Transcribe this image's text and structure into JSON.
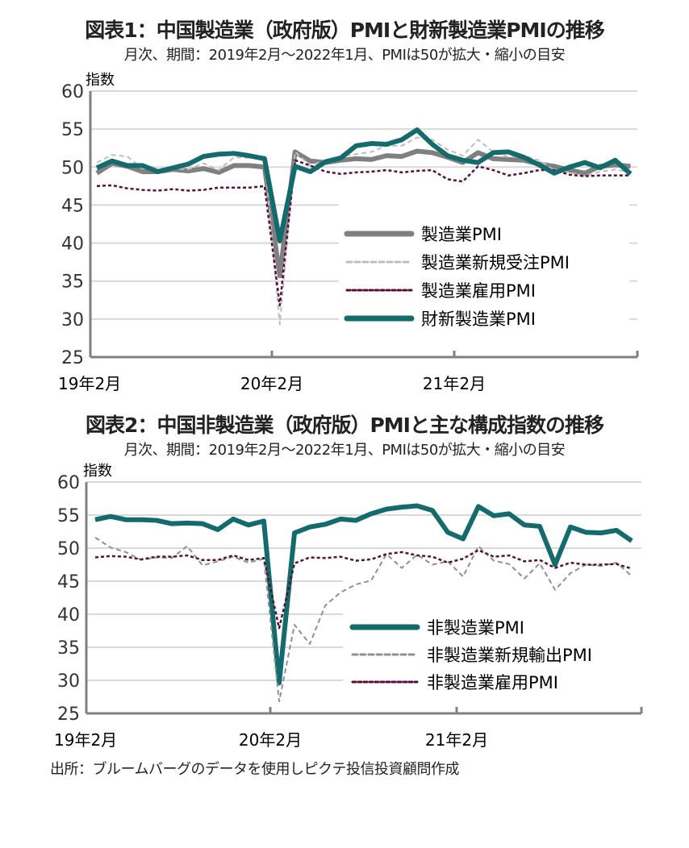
{
  "chart_data": [
    {
      "type": "line",
      "title": "図表1：中国製造業（政府版）PMIと財新製造業PMIの推移",
      "subtitle": "月次、期間：2019年2月～2022年1月、PMIは50が拡大・縮小の目安",
      "ylabel": "指数",
      "ylim": [
        25,
        60
      ],
      "yticks": [
        60,
        55,
        50,
        45,
        40,
        35,
        30,
        25
      ],
      "xticks": [
        "19年2月",
        "20年2月",
        "21年2月"
      ],
      "legend": "bottom-right",
      "grid": true,
      "series": [
        {
          "name": "製造業PMI",
          "color": "#808080",
          "style": "solid-thick",
          "values": [
            49.2,
            50.5,
            50.1,
            49.4,
            49.4,
            49.7,
            49.5,
            49.8,
            49.3,
            50.2,
            50.2,
            50.0,
            35.7,
            52.0,
            50.8,
            50.6,
            50.9,
            51.1,
            51.0,
            51.5,
            51.4,
            52.1,
            51.9,
            51.3,
            50.6,
            51.9,
            51.1,
            51.0,
            50.9,
            50.4,
            50.1,
            49.6,
            49.2,
            50.1,
            50.3,
            50.1
          ]
        },
        {
          "name": "製造業新規受注PMI",
          "color": "#bdbdbd",
          "style": "dashed",
          "values": [
            50.6,
            51.6,
            51.4,
            49.8,
            49.6,
            49.8,
            49.7,
            50.5,
            49.6,
            51.3,
            51.2,
            51.4,
            29.3,
            52.0,
            50.2,
            50.9,
            51.4,
            51.7,
            52.0,
            52.8,
            52.8,
            53.9,
            53.6,
            52.3,
            51.5,
            53.6,
            52.0,
            51.3,
            51.5,
            50.9,
            49.6,
            49.3,
            48.8,
            49.4,
            49.7,
            49.3
          ]
        },
        {
          "name": "製造業雇用PMI",
          "color": "#5a1036",
          "style": "dotted",
          "values": [
            47.5,
            47.6,
            47.2,
            47.0,
            46.9,
            47.1,
            46.9,
            47.0,
            47.3,
            47.3,
            47.3,
            47.5,
            31.8,
            50.9,
            50.2,
            49.4,
            49.1,
            49.3,
            49.4,
            49.6,
            49.3,
            49.5,
            49.6,
            48.4,
            48.1,
            50.1,
            49.6,
            48.9,
            49.2,
            49.6,
            49.6,
            49.0,
            48.8,
            48.9,
            48.9,
            48.9
          ]
        },
        {
          "name": "財新製造業PMI",
          "color": "#136b6e",
          "style": "solid-thick",
          "values": [
            49.9,
            50.8,
            50.2,
            50.2,
            49.4,
            49.9,
            50.4,
            51.4,
            51.7,
            51.8,
            51.5,
            51.1,
            40.3,
            50.1,
            49.4,
            50.7,
            51.2,
            52.8,
            53.1,
            53.0,
            53.6,
            54.9,
            53.0,
            51.5,
            50.9,
            50.6,
            51.9,
            52.0,
            51.3,
            50.3,
            49.2,
            50.0,
            50.6,
            49.9,
            50.9,
            49.1
          ]
        }
      ]
    },
    {
      "type": "line",
      "title": "図表2：中国非製造業（政府版）PMIと主な構成指数の推移",
      "subtitle": "月次、期間：2019年2月～2022年1月、PMIは50が拡大・縮小の目安",
      "ylabel": "指数",
      "ylim": [
        25,
        60
      ],
      "yticks": [
        60,
        55,
        50,
        45,
        40,
        35,
        30,
        25
      ],
      "xticks": [
        "19年2月",
        "20年2月",
        "21年2月"
      ],
      "legend": "bottom-right",
      "grid": true,
      "series": [
        {
          "name": "非製造業PMI",
          "color": "#136b6e",
          "style": "solid-thick",
          "values": [
            54.3,
            54.8,
            54.3,
            54.3,
            54.2,
            53.7,
            53.8,
            53.7,
            52.8,
            54.4,
            53.5,
            54.1,
            29.6,
            52.3,
            53.2,
            53.6,
            54.4,
            54.2,
            55.2,
            55.9,
            56.2,
            56.4,
            55.7,
            52.4,
            51.4,
            56.3,
            54.9,
            55.2,
            53.5,
            53.3,
            47.5,
            53.2,
            52.4,
            52.3,
            52.7,
            51.1
          ]
        },
        {
          "name": "非製造業新規輸出PMI",
          "color": "#909090",
          "style": "dashed",
          "values": [
            51.6,
            50.1,
            49.4,
            48.2,
            48.6,
            48.5,
            50.3,
            47.4,
            48.0,
            48.7,
            47.8,
            48.4,
            26.8,
            38.4,
            35.5,
            41.3,
            43.3,
            44.5,
            45.1,
            49.1,
            47.0,
            49.0,
            47.5,
            48.0,
            45.7,
            50.3,
            48.1,
            47.6,
            45.4,
            47.7,
            43.7,
            46.2,
            47.5,
            47.3,
            47.8,
            45.8
          ]
        },
        {
          "name": "非製造業雇用PMI",
          "color": "#5a1036",
          "style": "dotted",
          "values": [
            48.6,
            48.8,
            48.7,
            48.3,
            48.7,
            48.7,
            48.9,
            48.2,
            48.2,
            48.9,
            48.2,
            48.5,
            37.9,
            47.7,
            48.6,
            48.5,
            48.7,
            48.1,
            48.3,
            49.1,
            49.4,
            48.9,
            48.7,
            47.8,
            48.4,
            49.7,
            48.7,
            48.9,
            48.0,
            48.2,
            47.0,
            47.8,
            47.5,
            47.5,
            47.6,
            46.9
          ]
        }
      ]
    }
  ],
  "source": "出所：ブルームバーグのデータを使用しピクテ投信投資顧問作成"
}
